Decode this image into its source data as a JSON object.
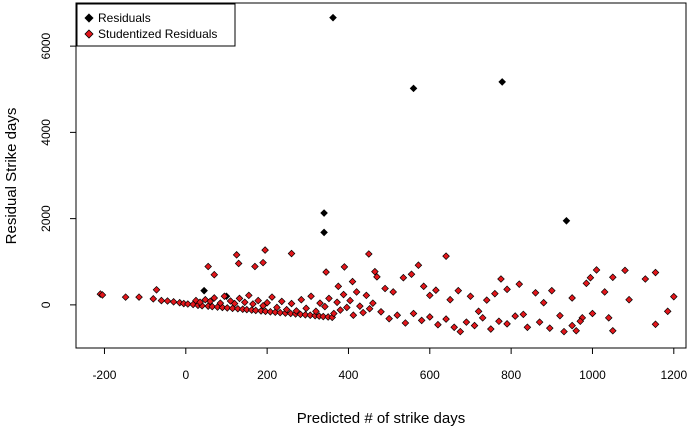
{
  "chart_data": {
    "type": "scatter",
    "title": "",
    "xlabel": "Predicted # of strike days",
    "ylabel": "Residual Strike days",
    "xlim": [
      -270,
      1230
    ],
    "ylim": [
      -1000,
      7000
    ],
    "x_ticks": [
      -200,
      0,
      200,
      400,
      600,
      800,
      1000,
      1200
    ],
    "y_ticks": [
      0,
      2000,
      4000,
      6000
    ],
    "legend_position": "top-left",
    "grid": false,
    "series": [
      {
        "name": "Residuals",
        "color": "#000000",
        "marker": "diamond",
        "points": [
          [
            362,
            6660
          ],
          [
            560,
            5020
          ],
          [
            778,
            5170
          ],
          [
            936,
            1950
          ],
          [
            340,
            2130
          ],
          [
            340,
            1680
          ],
          [
            45,
            330
          ],
          [
            100,
            200
          ]
        ]
      },
      {
        "name": "Studentized Residuals",
        "color": "#e3161b",
        "marker": "diamond",
        "points": [
          [
            -210,
            250
          ],
          [
            -205,
            230
          ],
          [
            -148,
            180
          ],
          [
            -115,
            180
          ],
          [
            -80,
            140
          ],
          [
            -72,
            350
          ],
          [
            -60,
            100
          ],
          [
            -45,
            90
          ],
          [
            -30,
            70
          ],
          [
            -15,
            50
          ],
          [
            -5,
            30
          ],
          [
            5,
            20
          ],
          [
            18,
            10
          ],
          [
            30,
            -10
          ],
          [
            40,
            -20
          ],
          [
            55,
            -30
          ],
          [
            65,
            -40
          ],
          [
            78,
            -50
          ],
          [
            90,
            -60
          ],
          [
            102,
            -70
          ],
          [
            115,
            -80
          ],
          [
            128,
            -90
          ],
          [
            140,
            -100
          ],
          [
            150,
            -110
          ],
          [
            162,
            -120
          ],
          [
            172,
            -130
          ],
          [
            185,
            -140
          ],
          [
            196,
            -150
          ],
          [
            208,
            -160
          ],
          [
            220,
            -170
          ],
          [
            232,
            -180
          ],
          [
            245,
            -190
          ],
          [
            258,
            -200
          ],
          [
            270,
            -210
          ],
          [
            282,
            -220
          ],
          [
            294,
            -230
          ],
          [
            306,
            -240
          ],
          [
            318,
            -250
          ],
          [
            328,
            -260
          ],
          [
            338,
            -270
          ],
          [
            350,
            -280
          ],
          [
            360,
            -290
          ],
          [
            25,
            100
          ],
          [
            35,
            60
          ],
          [
            48,
            120
          ],
          [
            60,
            80
          ],
          [
            70,
            160
          ],
          [
            85,
            40
          ],
          [
            95,
            200
          ],
          [
            110,
            90
          ],
          [
            120,
            30
          ],
          [
            132,
            150
          ],
          [
            145,
            60
          ],
          [
            155,
            220
          ],
          [
            165,
            20
          ],
          [
            178,
            100
          ],
          [
            190,
            -20
          ],
          [
            200,
            50
          ],
          [
            212,
            180
          ],
          [
            224,
            -60
          ],
          [
            236,
            80
          ],
          [
            248,
            -110
          ],
          [
            260,
            30
          ],
          [
            272,
            -140
          ],
          [
            284,
            120
          ],
          [
            296,
            -80
          ],
          [
            308,
            200
          ],
          [
            320,
            -150
          ],
          [
            330,
            40
          ],
          [
            342,
            -40
          ],
          [
            352,
            150
          ],
          [
            364,
            -200
          ],
          [
            372,
            60
          ],
          [
            380,
            -120
          ],
          [
            388,
            240
          ],
          [
            396,
            -60
          ],
          [
            404,
            100
          ],
          [
            412,
            -240
          ],
          [
            420,
            300
          ],
          [
            428,
            -30
          ],
          [
            436,
            -180
          ],
          [
            444,
            220
          ],
          [
            452,
            -90
          ],
          [
            460,
            40
          ],
          [
            55,
            890
          ],
          [
            70,
            700
          ],
          [
            125,
            1160
          ],
          [
            130,
            960
          ],
          [
            170,
            890
          ],
          [
            195,
            1270
          ],
          [
            190,
            980
          ],
          [
            260,
            1190
          ],
          [
            345,
            760
          ],
          [
            390,
            880
          ],
          [
            375,
            430
          ],
          [
            410,
            540
          ],
          [
            450,
            1180
          ],
          [
            465,
            770
          ],
          [
            470,
            650
          ],
          [
            490,
            380
          ],
          [
            510,
            300
          ],
          [
            535,
            630
          ],
          [
            555,
            710
          ],
          [
            572,
            920
          ],
          [
            585,
            430
          ],
          [
            600,
            220
          ],
          [
            615,
            340
          ],
          [
            640,
            1130
          ],
          [
            650,
            120
          ],
          [
            670,
            330
          ],
          [
            700,
            200
          ],
          [
            720,
            -150
          ],
          [
            740,
            110
          ],
          [
            760,
            260
          ],
          [
            775,
            600
          ],
          [
            790,
            360
          ],
          [
            820,
            480
          ],
          [
            830,
            -220
          ],
          [
            860,
            280
          ],
          [
            880,
            50
          ],
          [
            900,
            330
          ],
          [
            920,
            -250
          ],
          [
            950,
            160
          ],
          [
            960,
            -600
          ],
          [
            975,
            -300
          ],
          [
            985,
            500
          ],
          [
            995,
            630
          ],
          [
            1010,
            810
          ],
          [
            1030,
            300
          ],
          [
            1050,
            640
          ],
          [
            1080,
            800
          ],
          [
            1090,
            120
          ],
          [
            1130,
            600
          ],
          [
            1155,
            750
          ],
          [
            1155,
            -450
          ],
          [
            1185,
            -150
          ],
          [
            1200,
            190
          ],
          [
            480,
            -160
          ],
          [
            500,
            -320
          ],
          [
            520,
            -240
          ],
          [
            540,
            -420
          ],
          [
            560,
            -200
          ],
          [
            580,
            -360
          ],
          [
            600,
            -280
          ],
          [
            620,
            -460
          ],
          [
            640,
            -330
          ],
          [
            660,
            -520
          ],
          [
            675,
            -620
          ],
          [
            690,
            -400
          ],
          [
            710,
            -480
          ],
          [
            730,
            -300
          ],
          [
            750,
            -560
          ],
          [
            770,
            -380
          ],
          [
            790,
            -440
          ],
          [
            810,
            -260
          ],
          [
            840,
            -520
          ],
          [
            870,
            -400
          ],
          [
            895,
            -540
          ],
          [
            930,
            -620
          ],
          [
            950,
            -480
          ],
          [
            970,
            -380
          ],
          [
            1050,
            -600
          ],
          [
            1040,
            -300
          ],
          [
            1000,
            -200
          ]
        ]
      }
    ]
  }
}
